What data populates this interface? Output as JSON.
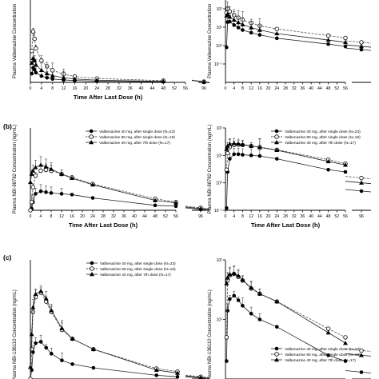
{
  "panel_labels": [
    "(b)",
    "(c)"
  ],
  "x_axis_break_label": "96",
  "chart_data": [
    {
      "id": "a-linear",
      "type": "line",
      "panel": "",
      "title": "",
      "xlabel": "Time After Last Dose (h)",
      "ylabel": "Plasma Valbenazine Concentration",
      "x_ticks": [
        "0",
        "4",
        "8",
        "12",
        "16",
        "20",
        "24",
        "28",
        "32",
        "36",
        "40",
        "44",
        "48",
        "52",
        "56",
        "96"
      ],
      "xlim": [
        0,
        56
      ],
      "x_break": 96,
      "ylim": [
        0,
        1700
      ],
      "log_y": false,
      "legend": [],
      "series": [
        {
          "marker": "filled-circle",
          "line": "solid",
          "x": [
            0.5,
            1,
            1.5,
            2,
            4,
            6,
            8,
            12,
            16,
            24,
            48,
            96
          ],
          "y": [
            180,
            300,
            260,
            200,
            130,
            95,
            70,
            50,
            38,
            25,
            12,
            6
          ]
        },
        {
          "marker": "open-circle",
          "line": "dashed",
          "x": [
            0.5,
            1,
            1.5,
            2,
            4,
            6,
            8,
            12,
            16,
            24,
            48,
            96
          ],
          "y": [
            650,
            1050,
            900,
            700,
            450,
            330,
            250,
            170,
            120,
            80,
            35,
            15
          ]
        },
        {
          "marker": "filled-triangle",
          "line": "solid",
          "x": [
            0.5,
            1,
            1.5,
            2,
            4,
            6,
            8,
            12,
            16,
            24,
            48,
            96
          ],
          "y": [
            400,
            500,
            450,
            360,
            250,
            180,
            140,
            95,
            70,
            45,
            20,
            9
          ]
        }
      ]
    },
    {
      "id": "a-log",
      "type": "line",
      "panel": "",
      "title": "",
      "xlabel": "",
      "ylabel": "Plasma Valbenazine Concentration",
      "x_ticks": [
        "0",
        "4",
        "8",
        "12",
        "16",
        "20",
        "24",
        "28",
        "32",
        "36",
        "40",
        "44",
        "48",
        "52",
        "56"
      ],
      "xlim": [
        0,
        56
      ],
      "x_break": 96,
      "ylim": [
        0.1,
        3000
      ],
      "log_y": true,
      "y_tick_labels": [
        "10²",
        "10¹",
        "10⁰",
        "10⁻¹"
      ],
      "legend": [],
      "series": [
        {
          "marker": "filled-circle",
          "line": "solid",
          "x": [
            0.5,
            1,
            2,
            4,
            6,
            8,
            12,
            16,
            24,
            48,
            56,
            96
          ],
          "y": [
            8,
            190,
            200,
            130,
            95,
            70,
            50,
            38,
            25,
            12,
            9,
            6
          ]
        },
        {
          "marker": "open-circle",
          "line": "dashed",
          "x": [
            0.5,
            1,
            2,
            4,
            6,
            8,
            12,
            16,
            24,
            48,
            56,
            96
          ],
          "y": [
            600,
            1000,
            700,
            450,
            330,
            250,
            170,
            120,
            80,
            35,
            26,
            15
          ]
        },
        {
          "marker": "filled-triangle",
          "line": "solid",
          "x": [
            0.5,
            1,
            2,
            4,
            6,
            8,
            12,
            16,
            24,
            48,
            56,
            96
          ],
          "y": [
            420,
            500,
            360,
            250,
            180,
            140,
            95,
            70,
            45,
            20,
            15,
            9
          ]
        }
      ]
    },
    {
      "id": "b-linear",
      "type": "line",
      "panel": "(b)",
      "title": "",
      "xlabel": "Time After Last Dose (h)",
      "ylabel": "Plasma NBI-98782 Concentration (ng/mL)",
      "x_ticks": [
        "0",
        "4",
        "8",
        "12",
        "16",
        "20",
        "24",
        "28",
        "32",
        "36",
        "40",
        "44",
        "48",
        "52",
        "56",
        "96"
      ],
      "xlim": [
        0,
        56
      ],
      "x_break": 96,
      "ylim": [
        0,
        50
      ],
      "log_y": false,
      "legend": [
        "Valbenazine 40 mg, after single dose (N=23)",
        "Valbenazine 80 mg, after single dose (N=18)",
        "Valbenazine 40 mg, after 7th dose (N=17)"
      ],
      "legend_position": "top-right",
      "series": [
        {
          "name": "Valbenazine 40 mg, after single dose (N=23)",
          "marker": "filled-circle",
          "line": "solid",
          "x": [
            0,
            0.5,
            1,
            2,
            4,
            6,
            8,
            12,
            16,
            24,
            48,
            56,
            96
          ],
          "y": [
            0,
            1,
            5,
            10,
            11.5,
            11,
            10.5,
            10,
            9.5,
            7.5,
            3,
            2.5,
            0.5
          ]
        },
        {
          "name": "Valbenazine 80 mg, after single dose (N=18)",
          "marker": "open-circle",
          "line": "dashed",
          "x": [
            0,
            0.5,
            1,
            2,
            4,
            6,
            8,
            12,
            16,
            24,
            48,
            56,
            96
          ],
          "y": [
            0,
            5,
            14,
            21,
            24,
            24.5,
            24,
            22,
            20,
            16,
            7,
            5,
            1.5
          ]
        },
        {
          "name": "Valbenazine 40 mg, after 7th dose (N=17)",
          "marker": "filled-triangle",
          "line": "solid",
          "x": [
            0,
            0.5,
            1,
            2,
            4,
            6,
            8,
            12,
            16,
            24,
            48,
            56,
            96
          ],
          "y": [
            17,
            22,
            24,
            26,
            27.5,
            26.5,
            25,
            22,
            19.5,
            15.5,
            6,
            4.5,
            1
          ]
        }
      ]
    },
    {
      "id": "b-log",
      "type": "line",
      "panel": "",
      "title": "",
      "xlabel": "Time After Last Dose (h)",
      "ylabel": "Plasma NBI-98782 Concentration (ng/mL)",
      "x_ticks": [
        "0",
        "4",
        "8",
        "12",
        "16",
        "20",
        "24",
        "28",
        "32",
        "36",
        "40",
        "44",
        "48",
        "52",
        "56",
        "96"
      ],
      "xlim": [
        0,
        56
      ],
      "x_break": 96,
      "ylim": [
        0.1,
        100
      ],
      "log_y": true,
      "y_tick_labels": [
        "10²",
        "10¹",
        "10⁰",
        "10⁻¹"
      ],
      "legend": [
        "Valbenazine 40 mg, after single dose (N=23)",
        "Valbenazine 80 mg, after single dose (N=18)",
        "Valbenazine 40 mg, after 7th dose (N=17)"
      ],
      "legend_position": "top-right",
      "series": [
        {
          "name": "Valbenazine 40 mg, after single dose (N=23)",
          "marker": "filled-circle",
          "line": "solid",
          "x": [
            0.5,
            1,
            2,
            4,
            6,
            8,
            12,
            16,
            24,
            48,
            56,
            96
          ],
          "y": [
            0.12,
            2.5,
            7.5,
            11,
            11,
            10.5,
            10,
            9.5,
            7.5,
            3,
            2.5,
            0.5
          ]
        },
        {
          "name": "Valbenazine 80 mg, after single dose (N=18)",
          "marker": "open-circle",
          "line": "dashed",
          "x": [
            0.5,
            1,
            2,
            4,
            6,
            8,
            12,
            16,
            24,
            48,
            56,
            96
          ],
          "y": [
            3,
            12,
            20,
            24,
            24.5,
            24,
            22,
            20,
            16,
            7,
            5,
            1.5
          ]
        },
        {
          "name": "Valbenazine 40 mg, after 7th dose (N=17)",
          "marker": "filled-triangle",
          "line": "solid",
          "x": [
            0.5,
            1,
            2,
            4,
            6,
            8,
            12,
            16,
            24,
            48,
            56,
            96
          ],
          "y": [
            17,
            22,
            26,
            27.5,
            26.5,
            25,
            22,
            19.5,
            15.5,
            6,
            4.5,
            1
          ]
        }
      ]
    },
    {
      "id": "c-linear",
      "type": "line",
      "panel": "(c)",
      "title": "",
      "xlabel": "",
      "ylabel": "Plasma NBI-136110 Concentration (ng/mL)",
      "x_ticks": [],
      "xlim": [
        0,
        56
      ],
      "x_break": 96,
      "ylim": [
        0,
        80
      ],
      "log_y": false,
      "legend": [
        "Valbenazine 40 mg, after single dose (N=23)",
        "Valbenazine 80 mg, after single dose (N=18)",
        "Valbenazine 40 mg, after 7th dose (N=17)"
      ],
      "legend_position": "top-right",
      "series": [
        {
          "name": "Valbenazine 40 mg, after single dose (N=23)",
          "marker": "filled-circle",
          "line": "solid",
          "x": [
            0,
            0.5,
            1,
            2,
            4,
            6,
            8,
            12,
            16,
            24,
            48,
            56,
            96
          ],
          "y": [
            0,
            6,
            18,
            24,
            25,
            21,
            17,
            12.5,
            10,
            7.5,
            2.5,
            1.5,
            0.5
          ]
        },
        {
          "name": "Valbenazine 80 mg, after single dose (N=18)",
          "marker": "open-circle",
          "line": "dashed",
          "x": [
            0,
            0.5,
            1,
            2,
            4,
            6,
            8,
            12,
            16,
            24,
            48,
            56,
            96
          ],
          "y": [
            0,
            20,
            45,
            55,
            58,
            52,
            45,
            33,
            27,
            20,
            7,
            5,
            1.5
          ]
        },
        {
          "name": "Valbenazine 40 mg, after 7th dose (N=17)",
          "marker": "filled-triangle",
          "line": "solid",
          "x": [
            0,
            0.5,
            1,
            2,
            4,
            6,
            8,
            12,
            16,
            24,
            48,
            56,
            96
          ],
          "y": [
            8,
            30,
            48,
            57,
            59,
            54,
            46,
            34,
            27,
            20,
            6,
            4,
            1
          ]
        }
      ]
    },
    {
      "id": "c-log",
      "type": "line",
      "panel": "",
      "title": "",
      "xlabel": "",
      "ylabel": "Plasma NBI-136110 Concentration (ng/mL)",
      "x_ticks": [],
      "xlim": [
        0,
        56
      ],
      "x_break": 96,
      "ylim": [
        1,
        100
      ],
      "log_y": true,
      "y_tick_labels": [
        "10²",
        "10¹"
      ],
      "legend": [
        "Valbenazine 40 mg, after single dose (N=23)",
        "Valbenazine 80 mg, after single dose (N=18)",
        "Valbenazine 40 mg, after 7th dose (N=17)"
      ],
      "legend_position": "bottom-right",
      "series": [
        {
          "name": "Valbenazine 40 mg, after single dose (N=23)",
          "marker": "filled-circle",
          "line": "solid",
          "x": [
            0.5,
            1,
            2,
            4,
            6,
            8,
            12,
            16,
            24,
            48,
            56,
            96
          ],
          "y": [
            2,
            14,
            22,
            25,
            21,
            17,
            12.5,
            10,
            7.5,
            2.5,
            2,
            1.3
          ]
        },
        {
          "name": "Valbenazine 80 mg, after single dose (N=18)",
          "marker": "open-circle",
          "line": "dashed",
          "x": [
            0.5,
            1,
            2,
            4,
            6,
            8,
            12,
            16,
            24,
            48,
            56,
            96
          ],
          "y": [
            5,
            45,
            55,
            58,
            52,
            45,
            33,
            27,
            20,
            7,
            5,
            3
          ]
        },
        {
          "name": "Valbenazine 40 mg, after 7th dose (N=17)",
          "marker": "filled-triangle",
          "line": "solid",
          "x": [
            0.5,
            1,
            2,
            4,
            6,
            8,
            12,
            16,
            24,
            48,
            56,
            96
          ],
          "y": [
            40,
            50,
            57,
            59,
            54,
            46,
            34,
            27,
            20,
            6,
            4,
            2.5
          ]
        }
      ]
    }
  ]
}
